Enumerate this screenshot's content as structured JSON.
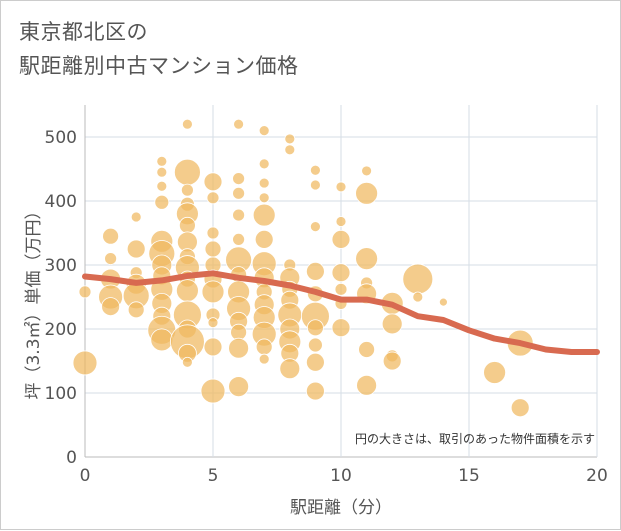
{
  "title": {
    "line1": "東京都北区の",
    "line2": "駅距離別中古マンション価格"
  },
  "chart_data": {
    "type": "scatter",
    "xlabel": "駅距離（分）",
    "ylabel": "坪（3.3㎡）単価（万円）",
    "xlim": [
      0,
      20
    ],
    "ylim": [
      0,
      550
    ],
    "x_ticks": [
      "0",
      "5",
      "10",
      "15",
      "20"
    ],
    "y_ticks": [
      "0",
      "100",
      "200",
      "300",
      "400",
      "500"
    ],
    "annotation": "円の大きさは、取引のあった物件面積を示す",
    "grid": true,
    "bubble_color": "#f0b860",
    "trend_color": "#d86a50",
    "bubbles": [
      {
        "x": 0,
        "y": 147,
        "s": 12
      },
      {
        "x": 0,
        "y": 258,
        "s": 6
      },
      {
        "x": 1,
        "y": 345,
        "s": 8
      },
      {
        "x": 1,
        "y": 310,
        "s": 6
      },
      {
        "x": 1,
        "y": 278,
        "s": 10
      },
      {
        "x": 1,
        "y": 250,
        "s": 12
      },
      {
        "x": 1,
        "y": 235,
        "s": 9
      },
      {
        "x": 2,
        "y": 375,
        "s": 5
      },
      {
        "x": 2,
        "y": 325,
        "s": 9
      },
      {
        "x": 2,
        "y": 288,
        "s": 6
      },
      {
        "x": 2,
        "y": 270,
        "s": 10
      },
      {
        "x": 2,
        "y": 252,
        "s": 13
      },
      {
        "x": 2,
        "y": 230,
        "s": 8
      },
      {
        "x": 3,
        "y": 462,
        "s": 5
      },
      {
        "x": 3,
        "y": 445,
        "s": 5
      },
      {
        "x": 3,
        "y": 423,
        "s": 5
      },
      {
        "x": 3,
        "y": 398,
        "s": 7
      },
      {
        "x": 3,
        "y": 337,
        "s": 11
      },
      {
        "x": 3,
        "y": 318,
        "s": 13
      },
      {
        "x": 3,
        "y": 300,
        "s": 10
      },
      {
        "x": 3,
        "y": 283,
        "s": 9
      },
      {
        "x": 3,
        "y": 262,
        "s": 11
      },
      {
        "x": 3,
        "y": 240,
        "s": 10
      },
      {
        "x": 3,
        "y": 220,
        "s": 9
      },
      {
        "x": 3,
        "y": 198,
        "s": 14
      },
      {
        "x": 3,
        "y": 183,
        "s": 11
      },
      {
        "x": 4,
        "y": 520,
        "s": 5
      },
      {
        "x": 4,
        "y": 445,
        "s": 13
      },
      {
        "x": 4,
        "y": 417,
        "s": 6
      },
      {
        "x": 4,
        "y": 395,
        "s": 7
      },
      {
        "x": 4,
        "y": 380,
        "s": 11
      },
      {
        "x": 4,
        "y": 362,
        "s": 8
      },
      {
        "x": 4,
        "y": 336,
        "s": 10
      },
      {
        "x": 4,
        "y": 313,
        "s": 8
      },
      {
        "x": 4,
        "y": 296,
        "s": 12
      },
      {
        "x": 4,
        "y": 278,
        "s": 8
      },
      {
        "x": 4,
        "y": 260,
        "s": 11
      },
      {
        "x": 4,
        "y": 222,
        "s": 14
      },
      {
        "x": 4,
        "y": 200,
        "s": 9
      },
      {
        "x": 4,
        "y": 180,
        "s": 17
      },
      {
        "x": 4,
        "y": 162,
        "s": 9
      },
      {
        "x": 4,
        "y": 148,
        "s": 5
      },
      {
        "x": 5,
        "y": 430,
        "s": 9
      },
      {
        "x": 5,
        "y": 405,
        "s": 6
      },
      {
        "x": 5,
        "y": 350,
        "s": 6
      },
      {
        "x": 5,
        "y": 325,
        "s": 8
      },
      {
        "x": 5,
        "y": 300,
        "s": 8
      },
      {
        "x": 5,
        "y": 278,
        "s": 9
      },
      {
        "x": 5,
        "y": 258,
        "s": 11
      },
      {
        "x": 5,
        "y": 222,
        "s": 7
      },
      {
        "x": 5,
        "y": 210,
        "s": 5
      },
      {
        "x": 5,
        "y": 172,
        "s": 9
      },
      {
        "x": 5,
        "y": 103,
        "s": 12
      },
      {
        "x": 6,
        "y": 520,
        "s": 5
      },
      {
        "x": 6,
        "y": 435,
        "s": 6
      },
      {
        "x": 6,
        "y": 412,
        "s": 6
      },
      {
        "x": 6,
        "y": 378,
        "s": 6
      },
      {
        "x": 6,
        "y": 340,
        "s": 6
      },
      {
        "x": 6,
        "y": 308,
        "s": 13
      },
      {
        "x": 6,
        "y": 285,
        "s": 8
      },
      {
        "x": 6,
        "y": 258,
        "s": 11
      },
      {
        "x": 6,
        "y": 232,
        "s": 12
      },
      {
        "x": 6,
        "y": 212,
        "s": 9
      },
      {
        "x": 6,
        "y": 195,
        "s": 8
      },
      {
        "x": 6,
        "y": 170,
        "s": 10
      },
      {
        "x": 6,
        "y": 110,
        "s": 10
      },
      {
        "x": 7,
        "y": 510,
        "s": 5
      },
      {
        "x": 7,
        "y": 458,
        "s": 5
      },
      {
        "x": 7,
        "y": 428,
        "s": 5
      },
      {
        "x": 7,
        "y": 405,
        "s": 5
      },
      {
        "x": 7,
        "y": 378,
        "s": 11
      },
      {
        "x": 7,
        "y": 340,
        "s": 9
      },
      {
        "x": 7,
        "y": 302,
        "s": 12
      },
      {
        "x": 7,
        "y": 280,
        "s": 10
      },
      {
        "x": 7,
        "y": 258,
        "s": 8
      },
      {
        "x": 7,
        "y": 238,
        "s": 10
      },
      {
        "x": 7,
        "y": 218,
        "s": 11
      },
      {
        "x": 7,
        "y": 192,
        "s": 12
      },
      {
        "x": 7,
        "y": 172,
        "s": 8
      },
      {
        "x": 7,
        "y": 153,
        "s": 5
      },
      {
        "x": 8,
        "y": 497,
        "s": 5
      },
      {
        "x": 8,
        "y": 480,
        "s": 5
      },
      {
        "x": 8,
        "y": 300,
        "s": 6
      },
      {
        "x": 8,
        "y": 280,
        "s": 10
      },
      {
        "x": 8,
        "y": 262,
        "s": 8
      },
      {
        "x": 8,
        "y": 245,
        "s": 9
      },
      {
        "x": 8,
        "y": 222,
        "s": 12
      },
      {
        "x": 8,
        "y": 200,
        "s": 10
      },
      {
        "x": 8,
        "y": 180,
        "s": 11
      },
      {
        "x": 8,
        "y": 162,
        "s": 9
      },
      {
        "x": 8,
        "y": 138,
        "s": 10
      },
      {
        "x": 9,
        "y": 448,
        "s": 5
      },
      {
        "x": 9,
        "y": 425,
        "s": 5
      },
      {
        "x": 9,
        "y": 360,
        "s": 5
      },
      {
        "x": 9,
        "y": 290,
        "s": 9
      },
      {
        "x": 9,
        "y": 255,
        "s": 8
      },
      {
        "x": 9,
        "y": 220,
        "s": 14
      },
      {
        "x": 9,
        "y": 202,
        "s": 8
      },
      {
        "x": 9,
        "y": 175,
        "s": 7
      },
      {
        "x": 9,
        "y": 148,
        "s": 9
      },
      {
        "x": 9,
        "y": 103,
        "s": 9
      },
      {
        "x": 10,
        "y": 422,
        "s": 5
      },
      {
        "x": 10,
        "y": 368,
        "s": 5
      },
      {
        "x": 10,
        "y": 340,
        "s": 9
      },
      {
        "x": 10,
        "y": 288,
        "s": 9
      },
      {
        "x": 10,
        "y": 262,
        "s": 6
      },
      {
        "x": 10,
        "y": 240,
        "s": 6
      },
      {
        "x": 10,
        "y": 202,
        "s": 9
      },
      {
        "x": 11,
        "y": 447,
        "s": 5
      },
      {
        "x": 11,
        "y": 412,
        "s": 11
      },
      {
        "x": 11,
        "y": 310,
        "s": 11
      },
      {
        "x": 11,
        "y": 272,
        "s": 6
      },
      {
        "x": 11,
        "y": 255,
        "s": 10
      },
      {
        "x": 11,
        "y": 168,
        "s": 8
      },
      {
        "x": 11,
        "y": 112,
        "s": 10
      },
      {
        "x": 12,
        "y": 240,
        "s": 11
      },
      {
        "x": 12,
        "y": 208,
        "s": 10
      },
      {
        "x": 12,
        "y": 158,
        "s": 6
      },
      {
        "x": 12,
        "y": 150,
        "s": 9
      },
      {
        "x": 13,
        "y": 278,
        "s": 15
      },
      {
        "x": 13,
        "y": 250,
        "s": 5
      },
      {
        "x": 14,
        "y": 242,
        "s": 4
      },
      {
        "x": 16,
        "y": 132,
        "s": 11
      },
      {
        "x": 17,
        "y": 178,
        "s": 13
      },
      {
        "x": 17,
        "y": 77,
        "s": 9
      }
    ],
    "trend": {
      "x": [
        0,
        1,
        2,
        3,
        4,
        5,
        6,
        7,
        8,
        9,
        10,
        11,
        12,
        13,
        14,
        15,
        16,
        17,
        18,
        19,
        20
      ],
      "y": [
        282,
        278,
        272,
        276,
        283,
        287,
        280,
        275,
        268,
        258,
        246,
        246,
        238,
        220,
        214,
        198,
        185,
        178,
        168,
        164,
        164
      ]
    }
  }
}
